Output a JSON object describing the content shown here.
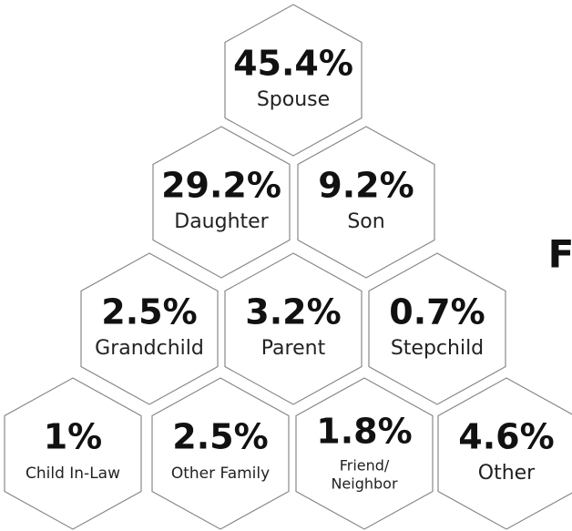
{
  "tiles": [
    {
      "value": "45.4%",
      "label": "Spouse"
    },
    {
      "value": "29.2%",
      "label": "Daughter"
    },
    {
      "value": "9.2%",
      "label": "Son"
    },
    {
      "value": "2.5%",
      "label": "Grandchild"
    },
    {
      "value": "3.2%",
      "label": "Parent"
    },
    {
      "value": "0.7%",
      "label": "Stepchild"
    },
    {
      "value": "1%",
      "label": "Child In-Law"
    },
    {
      "value": "2.5%",
      "label": "Other Family"
    },
    {
      "value": "1.8%",
      "label": [
        "Friend/",
        "Neighbor"
      ]
    },
    {
      "value": "4.6%",
      "label": "Other"
    }
  ],
  "side_text": "F"
}
